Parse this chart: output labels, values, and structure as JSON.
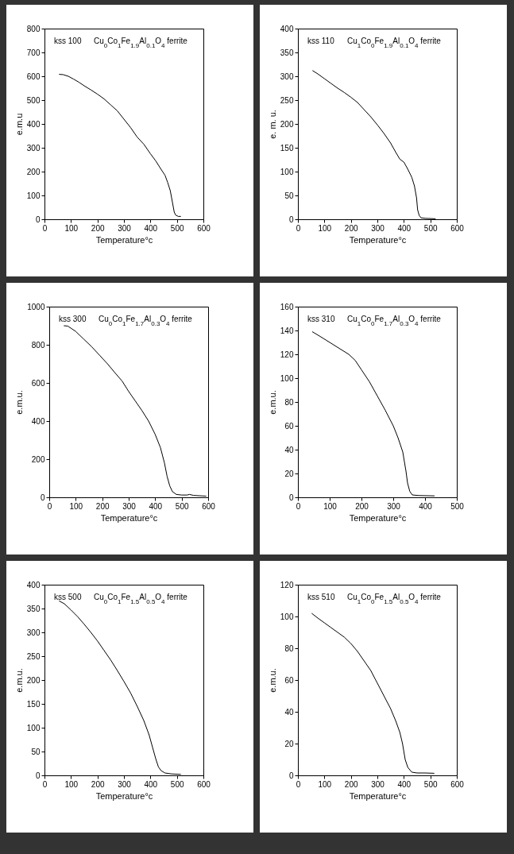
{
  "chart_data": [
    {
      "type": "line",
      "xlabel": "Temperature°c",
      "ylabel": "e.m.u",
      "annotations": [
        "kss 100",
        "Cu$_{0}$Co$_{1}$Fe$_{1.9}$Al$_{0.1}$O$_{4}$ ferrite"
      ],
      "color": "#000000",
      "xlim": [
        0,
        600
      ],
      "xticks": [
        0,
        100,
        200,
        300,
        400,
        500,
        600
      ],
      "ylim": [
        0,
        800
      ],
      "yticks": [
        0,
        100,
        200,
        300,
        400,
        500,
        600,
        700,
        800
      ],
      "x": [
        55,
        70,
        90,
        110,
        130,
        150,
        175,
        200,
        225,
        250,
        275,
        300,
        325,
        350,
        375,
        400,
        420,
        440,
        455,
        465,
        475,
        480,
        485,
        490,
        495,
        505,
        515
      ],
      "values": [
        608,
        607,
        600,
        588,
        575,
        560,
        543,
        525,
        505,
        480,
        455,
        420,
        385,
        345,
        315,
        275,
        245,
        210,
        185,
        155,
        120,
        90,
        60,
        30,
        18,
        12,
        12
      ]
    },
    {
      "type": "line",
      "xlabel": "Temperature°c",
      "ylabel": "e. m. u.",
      "annotations": [
        "kss 110",
        "Cu$_{1}$Co$_{0}$Fe$_{1.9}$Al$_{0.1}$O$_{4}$ ferrite"
      ],
      "color": "#000000",
      "xlim": [
        0,
        600
      ],
      "xticks": [
        0,
        100,
        200,
        300,
        400,
        500,
        600
      ],
      "ylim": [
        0,
        400
      ],
      "yticks": [
        0,
        50,
        100,
        150,
        200,
        250,
        300,
        350,
        400
      ],
      "x": [
        55,
        75,
        100,
        125,
        150,
        175,
        200,
        225,
        250,
        275,
        300,
        325,
        350,
        370,
        385,
        400,
        415,
        430,
        440,
        448,
        452,
        458,
        465,
        480,
        520
      ],
      "values": [
        312,
        305,
        295,
        285,
        275,
        266,
        256,
        245,
        230,
        215,
        198,
        180,
        160,
        140,
        126,
        120,
        105,
        88,
        70,
        45,
        20,
        8,
        3,
        2,
        1
      ]
    },
    {
      "type": "line",
      "xlabel": "Temperature°c",
      "ylabel": "e.m.u.",
      "annotations": [
        "kss 300",
        "Cu$_{0}$Co$_{1}$Fe$_{1.7}$Al$_{0.3}$O$_{4}$ ferrite"
      ],
      "color": "#000000",
      "xlim": [
        0,
        600
      ],
      "xticks": [
        0,
        100,
        200,
        300,
        400,
        500,
        600
      ],
      "ylim": [
        0,
        1000
      ],
      "yticks": [
        0,
        200,
        400,
        600,
        800,
        1000
      ],
      "x": [
        55,
        70,
        100,
        130,
        160,
        190,
        220,
        250,
        275,
        300,
        325,
        350,
        375,
        400,
        420,
        435,
        445,
        455,
        465,
        480,
        500,
        520,
        530,
        545,
        570,
        593
      ],
      "values": [
        900,
        898,
        870,
        830,
        790,
        745,
        700,
        650,
        610,
        555,
        505,
        455,
        400,
        330,
        260,
        180,
        110,
        60,
        30,
        15,
        12,
        12,
        15,
        10,
        8,
        6
      ]
    },
    {
      "type": "line",
      "xlabel": "Temperature°c",
      "ylabel": "e.m.u.",
      "annotations": [
        "kss 310",
        "Cu$_{1}$Co$_{0}$Fe$_{1.7}$Al$_{0.3}$O$_{4}$ ferrite"
      ],
      "color": "#000000",
      "xlim": [
        0,
        500
      ],
      "xticks": [
        0,
        100,
        200,
        300,
        400,
        500
      ],
      "ylim": [
        0,
        160
      ],
      "yticks": [
        0,
        20,
        40,
        60,
        80,
        100,
        120,
        140,
        160
      ],
      "x": [
        45,
        70,
        100,
        130,
        160,
        180,
        200,
        225,
        250,
        275,
        300,
        315,
        330,
        340,
        345,
        352,
        360,
        380,
        430
      ],
      "values": [
        139,
        135,
        130,
        125,
        120,
        115,
        107,
        97,
        85,
        73,
        60,
        50,
        38,
        22,
        12,
        5,
        2,
        1.5,
        1.2
      ]
    },
    {
      "type": "line",
      "xlabel": "Temperature°c",
      "ylabel": "e.m.u.",
      "annotations": [
        "kss 500",
        "Cu$_{0}$Co$_{1}$Fe$_{1.5}$Al$_{0.5}$O$_{4}$ ferrite"
      ],
      "color": "#000000",
      "xlim": [
        0,
        600
      ],
      "xticks": [
        0,
        100,
        200,
        300,
        400,
        500,
        600
      ],
      "ylim": [
        0,
        400
      ],
      "yticks": [
        0,
        50,
        100,
        150,
        200,
        250,
        300,
        350,
        400
      ],
      "x": [
        55,
        75,
        100,
        125,
        150,
        175,
        200,
        225,
        250,
        275,
        300,
        325,
        350,
        375,
        395,
        410,
        420,
        430,
        440,
        455,
        480,
        515
      ],
      "values": [
        366,
        360,
        347,
        333,
        317,
        300,
        282,
        262,
        242,
        220,
        197,
        173,
        145,
        115,
        85,
        55,
        35,
        18,
        10,
        5,
        3,
        2
      ]
    },
    {
      "type": "line",
      "xlabel": "Temperature°c",
      "ylabel": "e.m.u.",
      "annotations": [
        "kss 510",
        "Cu$_{1}$Co$_{0}$Fe$_{1.5}$Al$_{0.5}$O$_{4}$ ferrite"
      ],
      "color": "#000000",
      "xlim": [
        0,
        600
      ],
      "xticks": [
        0,
        100,
        200,
        300,
        400,
        500,
        600
      ],
      "ylim": [
        0,
        120
      ],
      "yticks": [
        0,
        20,
        40,
        60,
        80,
        100,
        120
      ],
      "x": [
        52,
        75,
        100,
        125,
        150,
        175,
        200,
        225,
        250,
        275,
        300,
        325,
        350,
        370,
        385,
        395,
        405,
        415,
        430,
        450,
        480,
        515
      ],
      "values": [
        102,
        99,
        96,
        93,
        90,
        87,
        83,
        78,
        72,
        66,
        58,
        50,
        42,
        34,
        27,
        20,
        10,
        5,
        2,
        1.5,
        1.5,
        1.3
      ]
    }
  ]
}
